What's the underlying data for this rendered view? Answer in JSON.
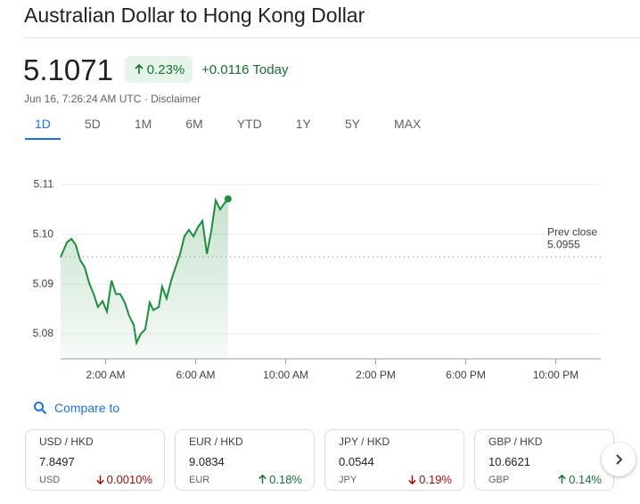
{
  "header": {
    "title": "Australian Dollar to Hong Kong Dollar"
  },
  "quote": {
    "price": "5.1071",
    "change_percent": "0.23%",
    "change_today": "+0.0116 Today",
    "timestamp": "Jun 16, 7:26:24 AM UTC",
    "disclaimer": "Disclaimer"
  },
  "tabs": [
    "1D",
    "5D",
    "1M",
    "6M",
    "YTD",
    "1Y",
    "5Y",
    "MAX"
  ],
  "chart_data": {
    "type": "line",
    "color": "#1e8e3e",
    "grid": true,
    "x": [
      0,
      0.28,
      0.48,
      0.67,
      0.87,
      1.07,
      1.27,
      1.47,
      1.66,
      1.86,
      2.06,
      2.26,
      2.46,
      2.65,
      2.85,
      3.05,
      3.25,
      3.37,
      3.56,
      3.76,
      3.96,
      4.12,
      4.36,
      4.51,
      4.71,
      4.91,
      5.11,
      5.31,
      5.5,
      5.7,
      5.9,
      6.1,
      6.3,
      6.5,
      6.69,
      6.89,
      7.09,
      7.29,
      7.44
    ],
    "values": [
      5.0954,
      5.0984,
      5.0991,
      5.0979,
      5.0948,
      5.0934,
      5.0902,
      5.088,
      5.0854,
      5.0866,
      5.0845,
      5.0907,
      5.088,
      5.088,
      5.0863,
      5.0836,
      5.0818,
      5.0782,
      5.08,
      5.0809,
      5.0863,
      5.0848,
      5.0854,
      5.0895,
      5.0871,
      5.0907,
      5.0934,
      5.0961,
      5.0996,
      5.1009,
      5.0996,
      5.1014,
      5.1027,
      5.0961,
      5.1005,
      5.1068,
      5.105,
      5.1063,
      5.1071
    ],
    "xlim": [
      0,
      24
    ],
    "xticks": [
      {
        "value": 2,
        "label": "2:00 AM"
      },
      {
        "value": 6,
        "label": "6:00 AM"
      },
      {
        "value": 10,
        "label": "10:00 AM"
      },
      {
        "value": 14,
        "label": "2:00 PM"
      },
      {
        "value": 18,
        "label": "6:00 PM"
      },
      {
        "value": 22,
        "label": "10:00 PM"
      }
    ],
    "ylim": [
      5.075,
      5.112
    ],
    "yticks": [
      5.08,
      5.09,
      {
        "value": 5.1,
        "label": "5.10"
      },
      5.11
    ],
    "prev_close_label": "Prev close",
    "prev_close": 5.0955
  },
  "compare": {
    "title": "Compare to",
    "cards": [
      {
        "pair": "USD / HKD",
        "price": "7.8497",
        "currency": "USD",
        "change": "0.0010%",
        "direction": "down"
      },
      {
        "pair": "EUR / HKD",
        "price": "9.0834",
        "currency": "EUR",
        "change": "0.18%",
        "direction": "up"
      },
      {
        "pair": "JPY / HKD",
        "price": "0.0544",
        "currency": "JPY",
        "change": "0.19%",
        "direction": "down"
      },
      {
        "pair": "GBP / HKD",
        "price": "10.6621",
        "currency": "GBP",
        "change": "0.14%",
        "direction": "up"
      }
    ]
  }
}
